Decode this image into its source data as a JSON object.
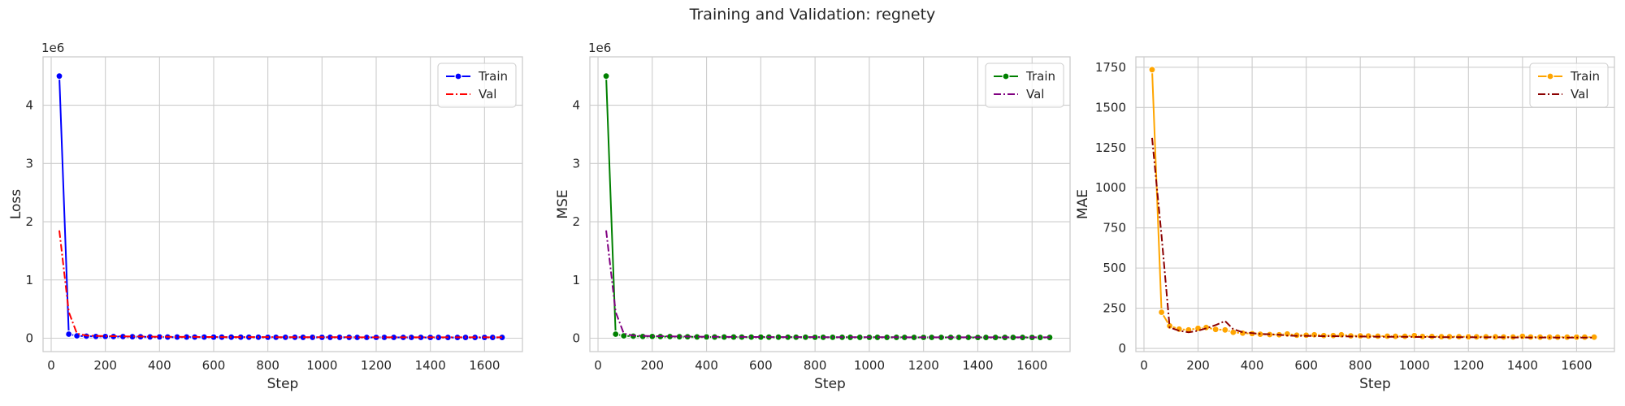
{
  "figure": {
    "title": "Training and Validation: regnety"
  },
  "chart_data": [
    {
      "type": "line",
      "xlabel": "Step",
      "ylabel": "Loss",
      "offset_text": "1e6",
      "xlim": [
        -30,
        1740
      ],
      "ylim": [
        -0.23,
        4.83
      ],
      "xticks": [
        0,
        200,
        400,
        600,
        800,
        1000,
        1200,
        1400,
        1600
      ],
      "yticks": [
        0,
        1,
        2,
        3,
        4
      ],
      "grid": true,
      "legend": "top-right",
      "series": [
        {
          "name": "Train",
          "color": "#0000ff",
          "style": "solid-markers",
          "x": [
            30,
            65,
            95,
            130,
            165,
            200,
            230,
            265,
            300,
            330,
            365,
            400,
            430,
            465,
            500,
            530,
            565,
            600,
            630,
            665,
            700,
            730,
            765,
            800,
            830,
            865,
            900,
            930,
            965,
            1000,
            1030,
            1065,
            1100,
            1130,
            1165,
            1200,
            1230,
            1265,
            1300,
            1330,
            1365,
            1400,
            1430,
            1465,
            1500,
            1530,
            1565,
            1600,
            1630,
            1665
          ],
          "y": [
            4.5,
            0.07,
            0.04,
            0.035,
            0.03,
            0.03,
            0.028,
            0.028,
            0.025,
            0.024,
            0.022,
            0.022,
            0.02,
            0.02,
            0.02,
            0.019,
            0.019,
            0.018,
            0.018,
            0.018,
            0.017,
            0.017,
            0.017,
            0.016,
            0.016,
            0.016,
            0.016,
            0.015,
            0.015,
            0.015,
            0.015,
            0.015,
            0.015,
            0.014,
            0.014,
            0.014,
            0.014,
            0.014,
            0.014,
            0.014,
            0.014,
            0.013,
            0.013,
            0.013,
            0.013,
            0.013,
            0.013,
            0.013,
            0.013,
            0.013
          ]
        },
        {
          "name": "Val",
          "color": "#ff0000",
          "style": "dashdot",
          "x": [
            30,
            65,
            95,
            130,
            165,
            200,
            230,
            265,
            300,
            330,
            365,
            400,
            430,
            465,
            500,
            530,
            565,
            600,
            630,
            665,
            700,
            730,
            765,
            800,
            830,
            865,
            900,
            930,
            965,
            1000,
            1030,
            1065,
            1100,
            1130,
            1165,
            1200,
            1230,
            1265,
            1300,
            1330,
            1365,
            1400,
            1430,
            1465,
            1500,
            1530,
            1565,
            1600,
            1630,
            1665
          ],
          "y": [
            1.85,
            0.45,
            0.08,
            0.045,
            0.04,
            0.035,
            0.035,
            0.032,
            0.03,
            0.028,
            0.026,
            0.025,
            0.024,
            0.023,
            0.022,
            0.022,
            0.021,
            0.021,
            0.02,
            0.02,
            0.02,
            0.019,
            0.019,
            0.019,
            0.018,
            0.018,
            0.018,
            0.018,
            0.017,
            0.017,
            0.017,
            0.017,
            0.017,
            0.016,
            0.016,
            0.016,
            0.016,
            0.016,
            0.016,
            0.016,
            0.015,
            0.015,
            0.015,
            0.015,
            0.015,
            0.015,
            0.015,
            0.015,
            0.015,
            0.015
          ]
        }
      ]
    },
    {
      "type": "line",
      "xlabel": "Step",
      "ylabel": "MSE",
      "offset_text": "1e6",
      "xlim": [
        -30,
        1740
      ],
      "ylim": [
        -0.23,
        4.83
      ],
      "xticks": [
        0,
        200,
        400,
        600,
        800,
        1000,
        1200,
        1400,
        1600
      ],
      "yticks": [
        0,
        1,
        2,
        3,
        4
      ],
      "grid": true,
      "legend": "top-right",
      "series": [
        {
          "name": "Train",
          "color": "#008000",
          "style": "solid-markers",
          "x": [
            30,
            65,
            95,
            130,
            165,
            200,
            230,
            265,
            300,
            330,
            365,
            400,
            430,
            465,
            500,
            530,
            565,
            600,
            630,
            665,
            700,
            730,
            765,
            800,
            830,
            865,
            900,
            930,
            965,
            1000,
            1030,
            1065,
            1100,
            1130,
            1165,
            1200,
            1230,
            1265,
            1300,
            1330,
            1365,
            1400,
            1430,
            1465,
            1500,
            1530,
            1565,
            1600,
            1630,
            1665
          ],
          "y": [
            4.5,
            0.07,
            0.04,
            0.035,
            0.03,
            0.03,
            0.028,
            0.028,
            0.025,
            0.024,
            0.022,
            0.022,
            0.02,
            0.02,
            0.02,
            0.019,
            0.019,
            0.018,
            0.018,
            0.018,
            0.017,
            0.017,
            0.017,
            0.016,
            0.016,
            0.016,
            0.016,
            0.015,
            0.015,
            0.015,
            0.015,
            0.015,
            0.015,
            0.014,
            0.014,
            0.014,
            0.014,
            0.014,
            0.014,
            0.014,
            0.014,
            0.013,
            0.013,
            0.013,
            0.013,
            0.013,
            0.013,
            0.013,
            0.013,
            0.013
          ]
        },
        {
          "name": "Val",
          "color": "#800080",
          "style": "dashdot",
          "x": [
            30,
            65,
            95,
            130,
            165,
            200,
            230,
            265,
            300,
            330,
            365,
            400,
            430,
            465,
            500,
            530,
            565,
            600,
            630,
            665,
            700,
            730,
            765,
            800,
            830,
            865,
            900,
            930,
            965,
            1000,
            1030,
            1065,
            1100,
            1130,
            1165,
            1200,
            1230,
            1265,
            1300,
            1330,
            1365,
            1400,
            1430,
            1465,
            1500,
            1530,
            1565,
            1600,
            1630,
            1665
          ],
          "y": [
            1.85,
            0.45,
            0.08,
            0.045,
            0.04,
            0.035,
            0.035,
            0.032,
            0.03,
            0.028,
            0.026,
            0.025,
            0.024,
            0.023,
            0.022,
            0.022,
            0.021,
            0.021,
            0.02,
            0.02,
            0.02,
            0.019,
            0.019,
            0.019,
            0.018,
            0.018,
            0.018,
            0.018,
            0.017,
            0.017,
            0.017,
            0.017,
            0.017,
            0.016,
            0.016,
            0.016,
            0.016,
            0.016,
            0.016,
            0.016,
            0.015,
            0.015,
            0.015,
            0.015,
            0.015,
            0.015,
            0.015,
            0.015,
            0.015,
            0.015
          ]
        }
      ]
    },
    {
      "type": "line",
      "xlabel": "Step",
      "ylabel": "MAE",
      "offset_text": "",
      "xlim": [
        -30,
        1740
      ],
      "ylim": [
        -20,
        1815
      ],
      "xticks": [
        0,
        200,
        400,
        600,
        800,
        1000,
        1200,
        1400,
        1600
      ],
      "yticks": [
        0,
        250,
        500,
        750,
        1000,
        1250,
        1500,
        1750
      ],
      "grid": true,
      "legend": "top-right",
      "series": [
        {
          "name": "Train",
          "color": "#ffa500",
          "style": "solid-markers",
          "x": [
            30,
            65,
            95,
            130,
            165,
            200,
            230,
            265,
            300,
            330,
            365,
            400,
            430,
            465,
            500,
            530,
            565,
            600,
            630,
            665,
            700,
            730,
            765,
            800,
            830,
            865,
            900,
            930,
            965,
            1000,
            1030,
            1065,
            1100,
            1130,
            1165,
            1200,
            1230,
            1265,
            1300,
            1330,
            1365,
            1400,
            1430,
            1465,
            1500,
            1530,
            1565,
            1600,
            1630,
            1665
          ],
          "y": [
            1735,
            225,
            140,
            120,
            115,
            125,
            130,
            118,
            115,
            100,
            95,
            92,
            88,
            86,
            85,
            90,
            82,
            82,
            85,
            80,
            80,
            85,
            78,
            78,
            77,
            76,
            76,
            75,
            75,
            80,
            74,
            74,
            73,
            73,
            73,
            72,
            72,
            72,
            72,
            71,
            71,
            75,
            71,
            70,
            70,
            70,
            70,
            70,
            70,
            70
          ]
        },
        {
          "name": "Val",
          "color": "#8b0000",
          "style": "dashdot",
          "x": [
            30,
            65,
            95,
            130,
            165,
            200,
            230,
            265,
            300,
            330,
            365,
            400,
            430,
            465,
            500,
            530,
            565,
            600,
            630,
            665,
            700,
            730,
            765,
            800,
            830,
            865,
            900,
            930,
            965,
            1000,
            1030,
            1065,
            1100,
            1130,
            1165,
            1200,
            1230,
            1265,
            1300,
            1330,
            1365,
            1400,
            1430,
            1465,
            1500,
            1530,
            1565,
            1600,
            1630,
            1665
          ],
          "y": [
            1310,
            700,
            130,
            110,
            100,
            110,
            125,
            145,
            170,
            120,
            100,
            95,
            90,
            88,
            85,
            80,
            78,
            78,
            77,
            76,
            76,
            75,
            74,
            74,
            73,
            73,
            72,
            72,
            72,
            71,
            71,
            71,
            70,
            70,
            70,
            70,
            69,
            69,
            69,
            69,
            68,
            68,
            68,
            68,
            68,
            67,
            67,
            67,
            67,
            67
          ]
        }
      ]
    }
  ]
}
